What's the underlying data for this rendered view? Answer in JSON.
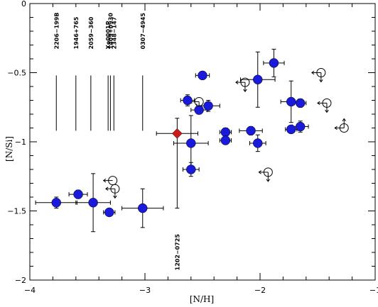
{
  "chart_data": {
    "type": "scatter",
    "xlabel": "[N/H]",
    "ylabel": "[N/Si]",
    "xlim": [
      -4,
      -1
    ],
    "ylim": [
      -2,
      0
    ],
    "xticks": [
      -4,
      -3,
      -2,
      -1
    ],
    "xtick_labels": [
      "−4",
      "−3",
      "−2",
      "−1"
    ],
    "yticks": [
      -2,
      -1.5,
      -1,
      -0.5,
      0
    ],
    "ytick_labels": [
      "−2",
      "−1.5",
      "−1",
      "−0.5",
      "0"
    ],
    "grid": false,
    "colors": {
      "detection": "#1a1adb",
      "special": "#cc1a1a",
      "limit": "#000000"
    },
    "detections": [
      {
        "x": -3.77,
        "y": -1.44,
        "xerr": 0.18,
        "yerr": 0.04
      },
      {
        "x": -3.58,
        "y": -1.38,
        "xerr": 0.08,
        "yerr": 0.03
      },
      {
        "x": -3.45,
        "y": -1.44,
        "xerr": 0.15,
        "yerr": 0.21
      },
      {
        "x": -3.31,
        "y": -1.51,
        "xerr": 0.05,
        "yerr": 0.02
      },
      {
        "x": -3.02,
        "y": -1.48,
        "xerr": 0.18,
        "yerr": 0.14
      },
      {
        "x": -2.6,
        "y": -1.01,
        "xerr": 0.15,
        "yerr": 0.2
      },
      {
        "x": -2.6,
        "y": -1.2,
        "xerr": 0.07,
        "yerr": 0.05
      },
      {
        "x": -2.63,
        "y": -0.7,
        "xerr": 0.06,
        "yerr": 0.04
      },
      {
        "x": -2.53,
        "y": -0.77,
        "xerr": 0.07,
        "yerr": 0.03
      },
      {
        "x": -2.5,
        "y": -0.52,
        "xerr": 0.06,
        "yerr": 0.02
      },
      {
        "x": -2.45,
        "y": -0.74,
        "xerr": 0.1,
        "yerr": 0.04
      },
      {
        "x": -2.3,
        "y": -0.93,
        "xerr": 0.05,
        "yerr": 0.03
      },
      {
        "x": -2.3,
        "y": -0.99,
        "xerr": 0.05,
        "yerr": 0.02
      },
      {
        "x": -2.08,
        "y": -0.92,
        "xerr": 0.1,
        "yerr": 0.03
      },
      {
        "x": -2.02,
        "y": -1.01,
        "xerr": 0.07,
        "yerr": 0.06
      },
      {
        "x": -2.02,
        "y": -0.55,
        "xerr": 0.15,
        "yerr": 0.2
      },
      {
        "x": -1.88,
        "y": -0.43,
        "xerr": 0.09,
        "yerr": 0.1
      },
      {
        "x": -1.73,
        "y": -0.71,
        "xerr": 0.09,
        "yerr": 0.15
      },
      {
        "x": -1.73,
        "y": -0.91,
        "xerr": 0.05,
        "yerr": 0.02
      },
      {
        "x": -1.65,
        "y": -0.72,
        "xerr": 0.05,
        "yerr": 0.03
      },
      {
        "x": -1.65,
        "y": -0.89,
        "xerr": 0.07,
        "yerr": 0.04
      }
    ],
    "special_point": {
      "x": -2.72,
      "y": -0.94,
      "xerr": 0.18,
      "yerr": 0.11,
      "ylow": -1.48
    },
    "limits": [
      {
        "x": -3.28,
        "y": -1.28,
        "left": true,
        "down": false,
        "up": false
      },
      {
        "x": -3.26,
        "y": -1.34,
        "left": true,
        "down": true,
        "up": false
      },
      {
        "x": -2.53,
        "y": -0.71,
        "left": true,
        "down": true,
        "up": false
      },
      {
        "x": -2.13,
        "y": -0.57,
        "left": true,
        "down": true,
        "up": false
      },
      {
        "x": -1.93,
        "y": -1.22,
        "left": true,
        "down": true,
        "up": false
      },
      {
        "x": -1.47,
        "y": -0.5,
        "left": true,
        "down": true,
        "up": false
      },
      {
        "x": -1.42,
        "y": -0.72,
        "left": true,
        "down": true,
        "up": false
      },
      {
        "x": -1.27,
        "y": -0.9,
        "left": true,
        "down": false,
        "up": true
      }
    ],
    "labeled_lines": [
      {
        "label": "2206−199B",
        "x": -3.77,
        "y_top": -0.52,
        "y_bottom": -0.92
      },
      {
        "label": "1946+765",
        "x": -3.6,
        "y_top": -0.52,
        "y_bottom": -0.92
      },
      {
        "label": "2059−360",
        "x": -3.47,
        "y_top": -0.52,
        "y_bottom": -0.92
      },
      {
        "label": "Xo0001P",
        "x": -3.32,
        "y_top": -0.52,
        "y_bottom": -0.92
      },
      {
        "label": "1409+0930",
        "x": -3.3,
        "y_top": -0.52,
        "y_bottom": -0.92
      },
      {
        "label": "2348−147",
        "x": -3.27,
        "y_top": -0.52,
        "y_bottom": -0.92
      },
      {
        "label": "0307−4945",
        "x": -3.02,
        "y_top": -0.52,
        "y_bottom": -0.92
      }
    ],
    "bottom_label": {
      "label": "1202−0725",
      "x": -2.72
    }
  }
}
